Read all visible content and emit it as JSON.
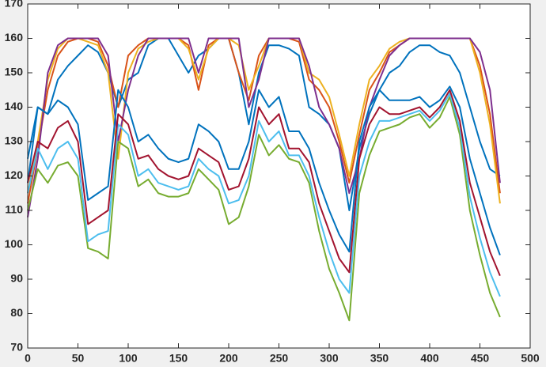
{
  "chart_data": {
    "type": "line",
    "x": [
      0,
      10,
      20,
      30,
      40,
      50,
      60,
      70,
      80,
      90,
      100,
      110,
      120,
      130,
      140,
      150,
      160,
      170,
      180,
      190,
      200,
      210,
      220,
      230,
      240,
      250,
      260,
      270,
      280,
      290,
      300,
      310,
      320,
      330,
      340,
      350,
      360,
      370,
      380,
      390,
      400,
      410,
      420,
      430,
      440,
      450,
      460,
      470
    ],
    "xlim": [
      0,
      500
    ],
    "xticks": [
      0,
      50,
      100,
      150,
      200,
      250,
      300,
      350,
      400,
      450,
      500
    ],
    "ylim": [
      70,
      170
    ],
    "yticks": [
      70,
      80,
      90,
      100,
      110,
      120,
      130,
      140,
      150,
      160,
      170
    ],
    "grid": false,
    "series": [
      {
        "color": "#0072BD",
        "values": [
          118,
          140,
          138,
          148,
          152,
          155,
          158,
          156,
          150,
          140,
          148,
          150,
          158,
          160,
          160,
          155,
          150,
          155,
          157,
          160,
          160,
          150,
          135,
          150,
          158,
          158,
          157,
          155,
          140,
          138,
          135,
          128,
          110,
          128,
          138,
          145,
          150,
          152,
          156,
          158,
          158,
          156,
          155,
          150,
          140,
          130,
          122,
          120
        ]
      },
      {
        "color": "#D95319",
        "values": [
          112,
          128,
          145,
          155,
          159,
          160,
          160,
          159,
          152,
          140,
          155,
          158,
          160,
          160,
          160,
          160,
          158,
          145,
          158,
          160,
          160,
          150,
          142,
          155,
          160,
          160,
          160,
          159,
          148,
          145,
          140,
          130,
          118,
          132,
          145,
          150,
          156,
          158,
          160,
          160,
          160,
          160,
          160,
          160,
          160,
          152,
          138,
          115
        ]
      },
      {
        "color": "#EDB120",
        "values": [
          115,
          130,
          148,
          157,
          160,
          160,
          159,
          158,
          150,
          125,
          150,
          157,
          159,
          160,
          160,
          160,
          157,
          148,
          157,
          160,
          160,
          158,
          145,
          152,
          160,
          160,
          160,
          160,
          150,
          148,
          143,
          132,
          120,
          135,
          148,
          152,
          157,
          159,
          160,
          160,
          160,
          160,
          160,
          160,
          160,
          150,
          135,
          112
        ]
      },
      {
        "color": "#7E2F8E",
        "values": [
          108,
          125,
          150,
          158,
          160,
          160,
          160,
          160,
          155,
          130,
          145,
          155,
          160,
          160,
          160,
          160,
          160,
          150,
          160,
          160,
          160,
          160,
          140,
          148,
          160,
          160,
          160,
          160,
          152,
          140,
          135,
          128,
          115,
          125,
          140,
          148,
          155,
          158,
          160,
          160,
          160,
          160,
          160,
          160,
          160,
          156,
          145,
          118
        ]
      },
      {
        "color": "#77AC30",
        "values": [
          110,
          122,
          118,
          123,
          124,
          120,
          99,
          98,
          96,
          130,
          128,
          117,
          119,
          115,
          114,
          114,
          115,
          122,
          119,
          116,
          106,
          108,
          117,
          132,
          126,
          129,
          125,
          124,
          118,
          104,
          93,
          86,
          78,
          115,
          126,
          133,
          134,
          135,
          137,
          138,
          134,
          137,
          143,
          132,
          110,
          97,
          86,
          79
        ]
      },
      {
        "color": "#4DBEEE",
        "values": [
          115,
          128,
          122,
          128,
          130,
          125,
          101,
          103,
          104,
          135,
          132,
          120,
          122,
          118,
          117,
          116,
          117,
          125,
          122,
          120,
          112,
          113,
          120,
          136,
          130,
          133,
          126,
          126,
          120,
          108,
          98,
          90,
          86,
          120,
          130,
          136,
          136,
          137,
          138,
          139,
          136,
          139,
          144,
          134,
          114,
          102,
          92,
          85
        ]
      },
      {
        "color": "#A2142F",
        "values": [
          118,
          130,
          128,
          134,
          136,
          130,
          106,
          108,
          110,
          138,
          135,
          125,
          126,
          122,
          120,
          119,
          120,
          128,
          126,
          124,
          116,
          117,
          125,
          140,
          135,
          138,
          128,
          128,
          124,
          112,
          104,
          96,
          92,
          125,
          135,
          140,
          138,
          138,
          139,
          140,
          137,
          140,
          145,
          136,
          118,
          108,
          98,
          91
        ]
      },
      {
        "color": "#0072BD",
        "values": [
          125,
          140,
          138,
          142,
          140,
          135,
          113,
          115,
          117,
          145,
          140,
          130,
          132,
          128,
          125,
          124,
          125,
          135,
          133,
          130,
          122,
          122,
          130,
          145,
          140,
          143,
          133,
          133,
          128,
          118,
          110,
          103,
          98,
          130,
          140,
          145,
          142,
          142,
          142,
          143,
          140,
          142,
          146,
          140,
          125,
          115,
          105,
          97
        ]
      }
    ]
  }
}
